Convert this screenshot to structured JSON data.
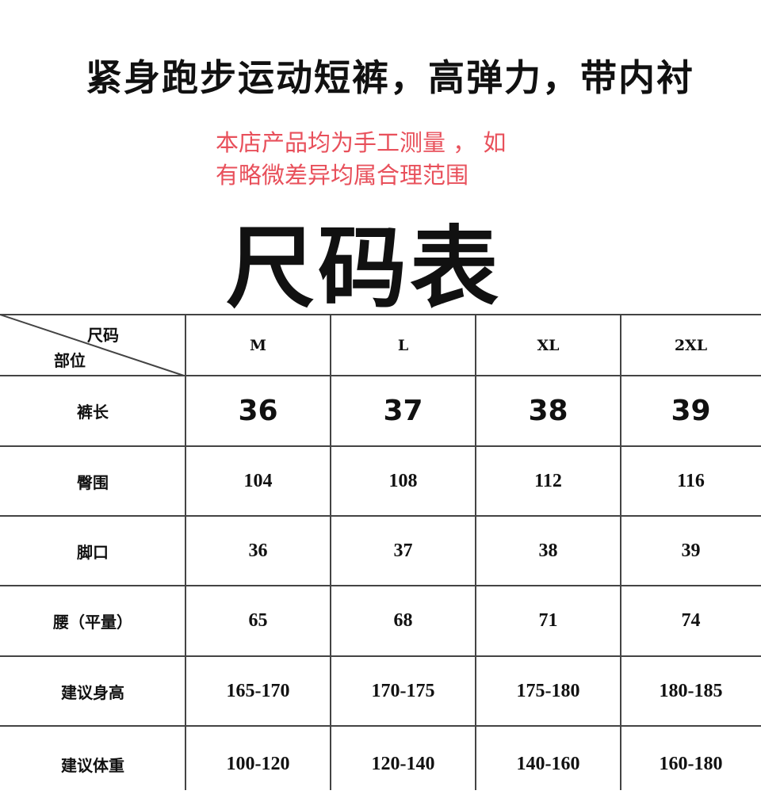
{
  "title": "紧身跑步运动短裤，高弹力，带内衬",
  "notice": [
    "本店产品均为手工测量 ， 如",
    "有略微差异均属合理范围"
  ],
  "heading": "尺码表",
  "colors": {
    "notice": "#e8505b",
    "text": "#111111",
    "grid": "#444444"
  },
  "table": {
    "corner_top": "尺码",
    "corner_bottom": "部位",
    "sizes": [
      "M",
      "L",
      "XL",
      "2XL"
    ],
    "rows": [
      {
        "label": "裤长",
        "values": [
          "36",
          "37",
          "38",
          "39"
        ]
      },
      {
        "label": "臀围",
        "values": [
          "104",
          "108",
          "112",
          "116"
        ]
      },
      {
        "label": "脚口",
        "values": [
          "36",
          "37",
          "38",
          "39"
        ]
      },
      {
        "label": "腰（平量）",
        "values": [
          "65",
          "68",
          "71",
          "74"
        ]
      },
      {
        "label": "建议身高",
        "values": [
          "165-170",
          "170-175",
          "175-180",
          "180-185"
        ]
      },
      {
        "label": "建议体重",
        "values": [
          "100-120",
          "120-140",
          "140-160",
          "160-180"
        ]
      }
    ]
  }
}
